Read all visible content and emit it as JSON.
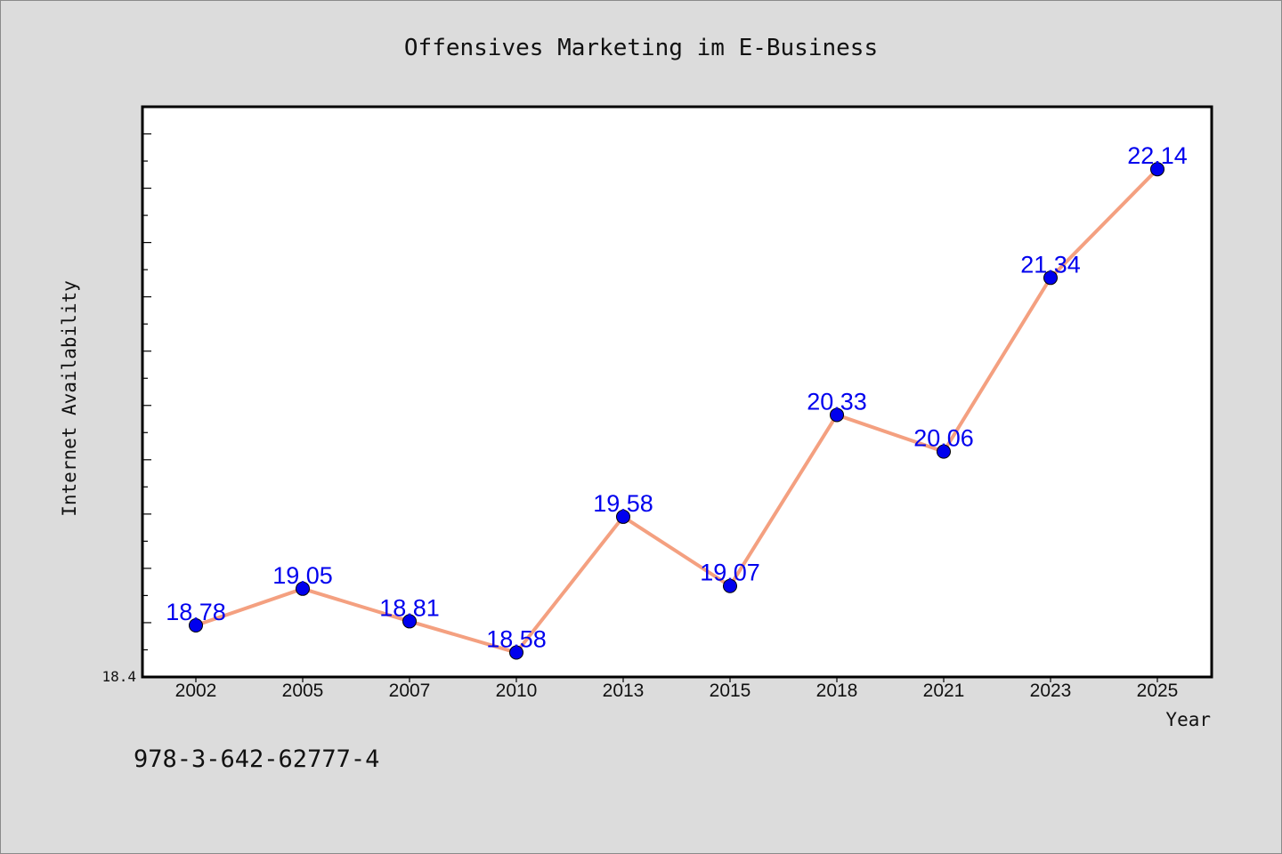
{
  "chart_data": {
    "type": "line",
    "title": "Offensives Marketing im E-Business",
    "xlabel": "Year",
    "ylabel": "Internet Availability",
    "categories": [
      "2002",
      "2005",
      "2007",
      "2010",
      "2013",
      "2015",
      "2018",
      "2021",
      "2023",
      "2025"
    ],
    "values": [
      18.78,
      19.05,
      18.81,
      18.58,
      19.58,
      19.07,
      20.33,
      20.06,
      21.34,
      22.14
    ],
    "data_labels": [
      "18.78",
      "19.05",
      "18.81",
      "18.58",
      "19.58",
      "19.07",
      "20.33",
      "20.06",
      "21.34",
      "22.14"
    ],
    "y_min_label": "18.4",
    "ylim": [
      18.4,
      22.6
    ],
    "grid": false,
    "legend": "none",
    "line_color": "#f4a080",
    "marker_color": "#0000ee",
    "label_color": "#0000ee",
    "annotation": "978-3-642-62777-4"
  }
}
